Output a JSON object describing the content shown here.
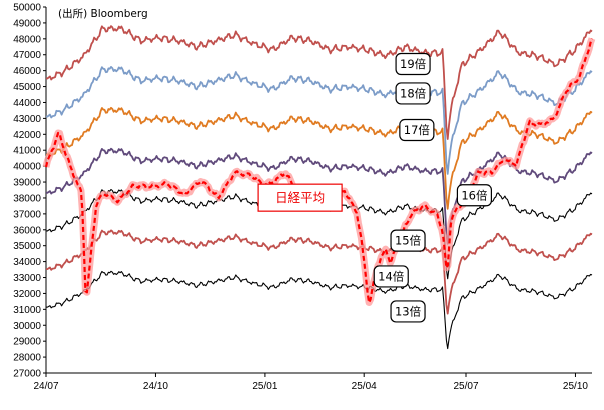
{
  "chart_data": {
    "type": "line",
    "source": "(出所) Bloomberg",
    "ylim": [
      27000,
      50000
    ],
    "y_ticks": [
      "27000",
      "28000",
      "29000",
      "30000",
      "31000",
      "32000",
      "33000",
      "34000",
      "35000",
      "36000",
      "37000",
      "38000",
      "39000",
      "40000",
      "41000",
      "42000",
      "43000",
      "44000",
      "45000",
      "46000",
      "47000",
      "48000",
      "49000",
      "50000"
    ],
    "x_ticks": [
      "24/07",
      "24/10",
      "25/01",
      "25/04",
      "25/07",
      "25/10"
    ],
    "x_tick_pos": [
      0,
      0.2606,
      0.5212,
      0.7576,
      1.0,
      1.2606
    ],
    "x_range": [
      0,
      1.3
    ],
    "eps": [
      0.0,
      0.045,
      0.09,
      0.135,
      0.18,
      0.225,
      0.27,
      0.315,
      0.36,
      0.405,
      0.45,
      0.495,
      0.54,
      0.585,
      0.63,
      0.675,
      0.72,
      0.765,
      0.81,
      0.855,
      0.9,
      0.945,
      0.955,
      0.965,
      0.99,
      1.035,
      1.08,
      1.125,
      1.17,
      1.215,
      1.26,
      1.3
    ],
    "eps_values": [
      2390,
      2420,
      2470,
      2560,
      2560,
      2520,
      2530,
      2520,
      2500,
      2520,
      2540,
      2510,
      2490,
      2530,
      2520,
      2490,
      2500,
      2490,
      2470,
      2500,
      2480,
      2480,
      2190,
      2300,
      2440,
      2490,
      2550,
      2480,
      2470,
      2440,
      2490,
      2560
    ],
    "series": [
      {
        "name": "19倍",
        "multiple": 19,
        "color": "#c0504d",
        "label": "19倍"
      },
      {
        "name": "18倍",
        "multiple": 18,
        "color": "#7c9cc8",
        "label": "18倍"
      },
      {
        "name": "17倍",
        "multiple": 17,
        "color": "#e07b22",
        "label": "17倍"
      },
      {
        "name": "16倍",
        "multiple": 16,
        "color": "#604a7b",
        "label": "16倍"
      },
      {
        "name": "15倍",
        "multiple": 15,
        "color": "#000000",
        "label": "15倍"
      },
      {
        "name": "14倍",
        "multiple": 14,
        "color": "#c0504d",
        "label": "14倍"
      },
      {
        "name": "13倍",
        "multiple": 13,
        "color": "#000000",
        "label": "13倍"
      }
    ],
    "nikkei": {
      "name": "日経平均",
      "label": "日経平均",
      "color": "#ff0000",
      "x": [
        0.0,
        0.03,
        0.06,
        0.085,
        0.095,
        0.12,
        0.14,
        0.17,
        0.21,
        0.25,
        0.29,
        0.33,
        0.37,
        0.41,
        0.45,
        0.49,
        0.52,
        0.54,
        0.57,
        0.6,
        0.64,
        0.68,
        0.71,
        0.74,
        0.75,
        0.77,
        0.79,
        0.81,
        0.82,
        0.84,
        0.87,
        0.9,
        0.93,
        0.945,
        0.955,
        0.965,
        0.985,
        1.0,
        1.03,
        1.06,
        1.09,
        1.12,
        1.15,
        1.18,
        1.21,
        1.24,
        1.27,
        1.3
      ],
      "values": [
        40000,
        42100,
        39800,
        38300,
        31500,
        37700,
        38300,
        37800,
        38800,
        38700,
        38900,
        38200,
        39100,
        38000,
        39600,
        39400,
        38800,
        39000,
        39600,
        38200,
        38600,
        37500,
        38500,
        37100,
        35600,
        31300,
        33800,
        34800,
        33900,
        35300,
        37000,
        37500,
        37000,
        35900,
        33000,
        36800,
        37500,
        37800,
        39600,
        39600,
        40400,
        40100,
        42700,
        42600,
        43000,
        44800,
        45600,
        48000
      ]
    },
    "nikkei_label_at": [
      0.605,
      38050
    ],
    "multiple_label_at": [
      [
        0.874,
        46450
      ],
      [
        0.874,
        44600
      ],
      [
        0.883,
        42300
      ],
      [
        1.02,
        38200
      ],
      [
        0.862,
        35350
      ],
      [
        0.822,
        33100
      ],
      [
        0.862,
        30900
      ]
    ]
  }
}
